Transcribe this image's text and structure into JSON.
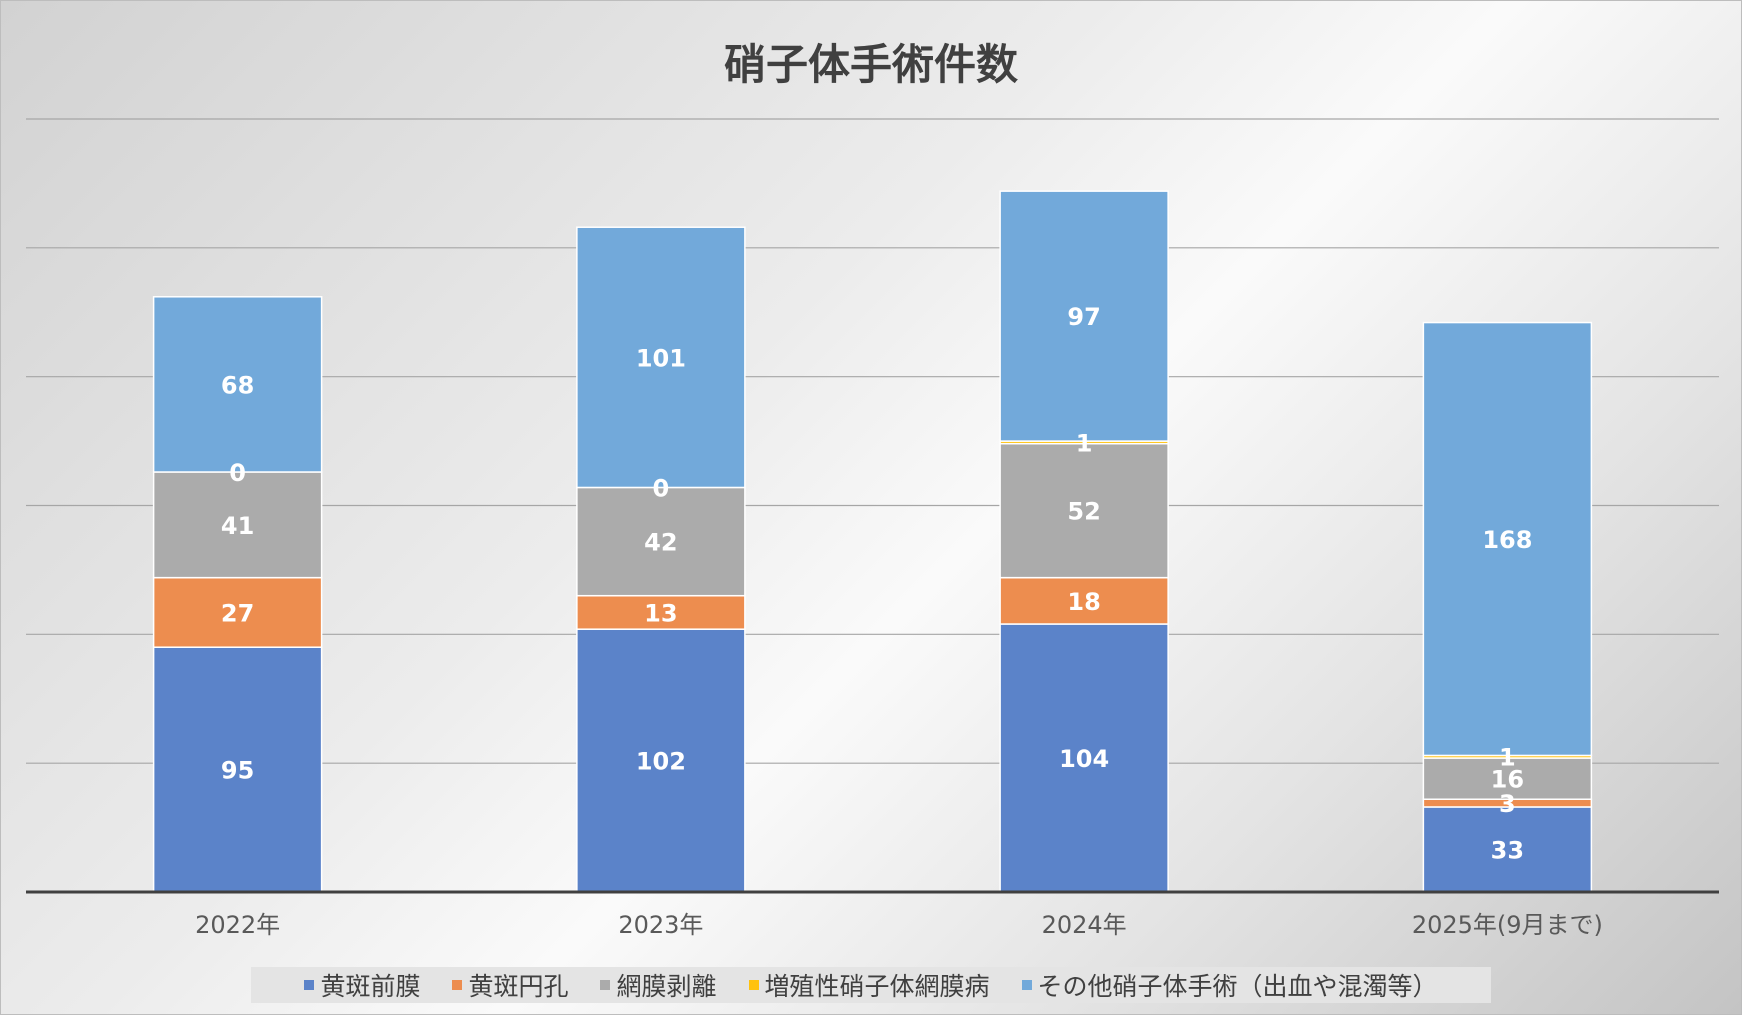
{
  "chart_data": {
    "type": "bar",
    "stacked": true,
    "title": "硝子体手術件数",
    "categories": [
      "2022年",
      "2023年",
      "2024年",
      "2025年(9月まで)"
    ],
    "series": [
      {
        "name": "黄斑前膜",
        "color": "#5B83C9",
        "values": [
          95,
          102,
          104,
          33
        ]
      },
      {
        "name": "黄斑円孔",
        "color": "#ED8D4F",
        "values": [
          27,
          13,
          18,
          3
        ]
      },
      {
        "name": "網膜剥離",
        "color": "#ABABAB",
        "values": [
          41,
          42,
          52,
          16
        ]
      },
      {
        "name": "増殖性硝子体網膜病",
        "color": "#FFC20E",
        "values": [
          0,
          0,
          1,
          1
        ]
      },
      {
        "name": "その他硝子体手術（出血や混濁等）",
        "color": "#72A9DA",
        "values": [
          68,
          101,
          97,
          168
        ]
      }
    ],
    "ylim": [
      0,
      300
    ],
    "grid": true,
    "data_labels": true,
    "legend_position": "bottom"
  }
}
